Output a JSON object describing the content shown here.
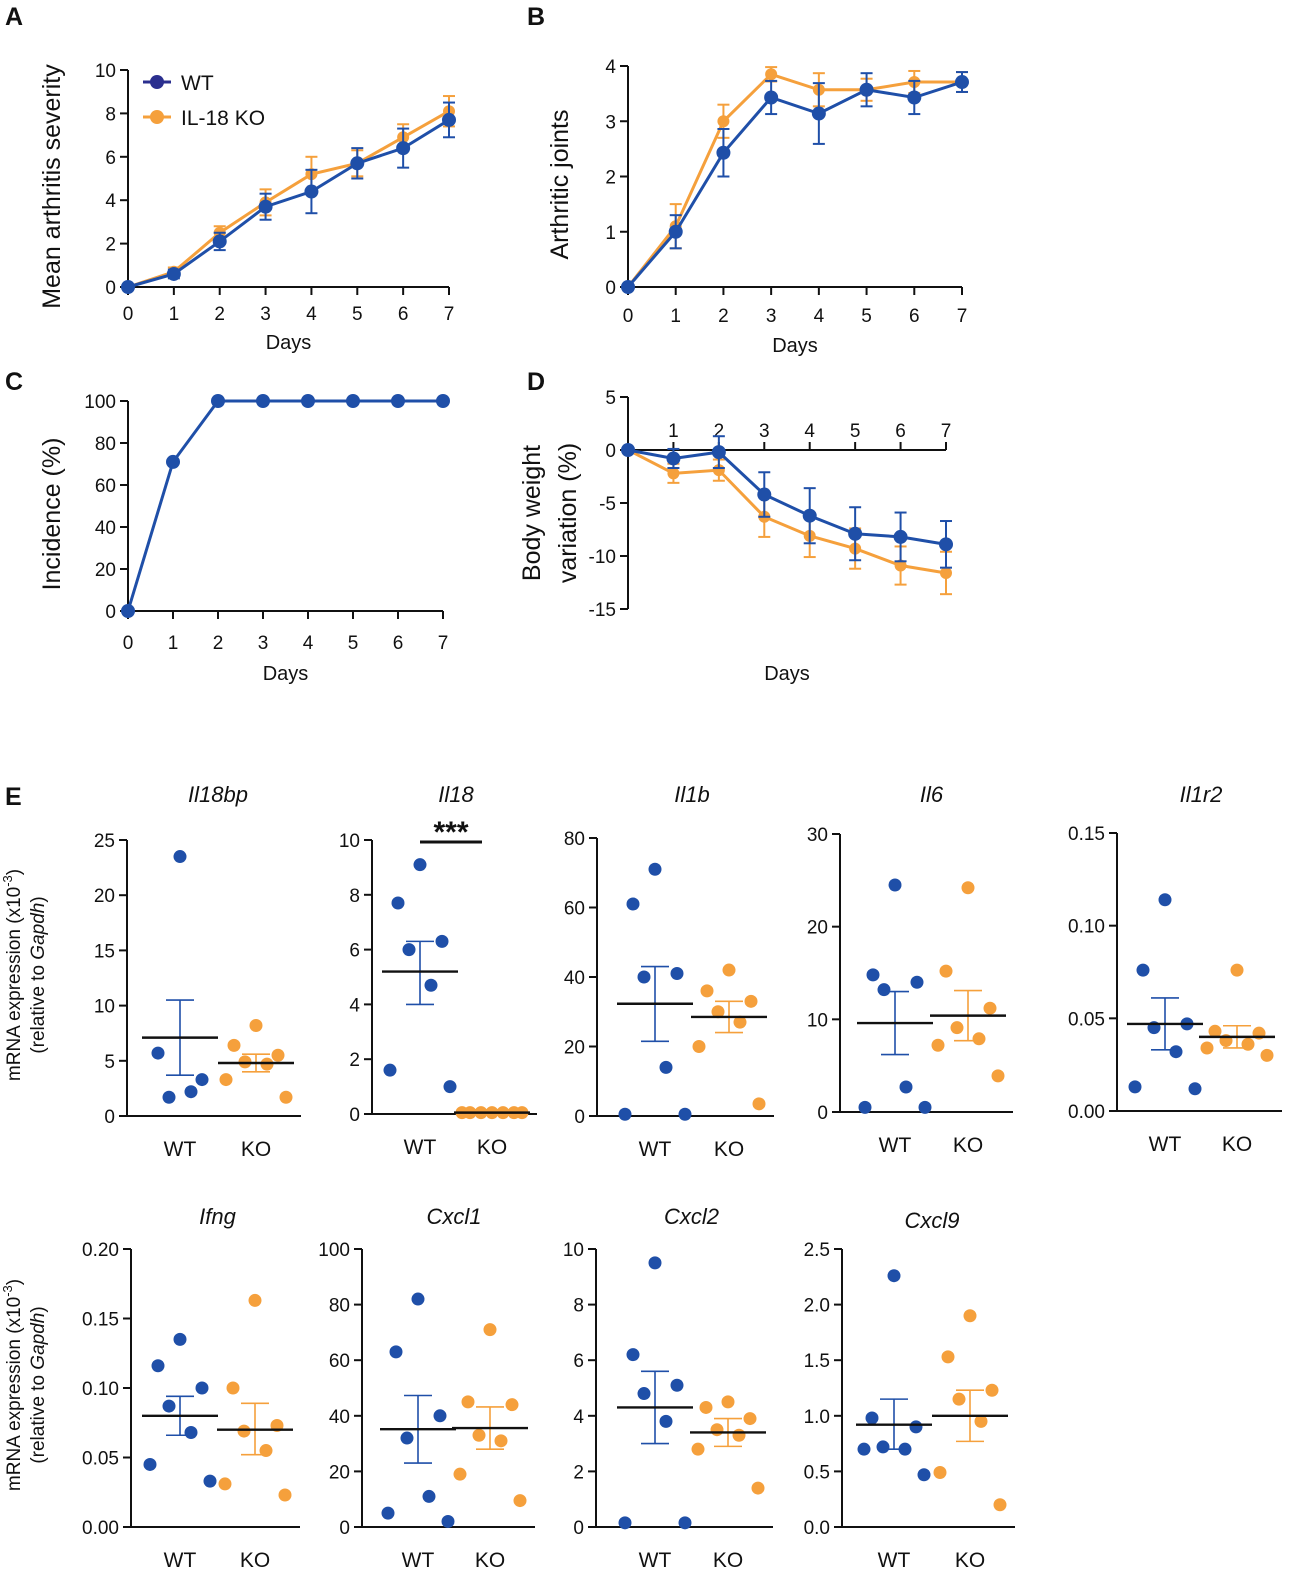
{
  "colors": {
    "wt": "#1f4fa8",
    "ko": "#f5a03c",
    "axis": "#111111",
    "legend_wt": "#2b2f8f"
  },
  "legend": {
    "wt": "WT",
    "ko": "IL-18 KO"
  },
  "panels": {
    "a": "A",
    "b": "B",
    "c": "C",
    "d": "D",
    "e": "E"
  },
  "chart_data": [
    {
      "id": "A",
      "type": "line",
      "xlabel": "Days",
      "ylabel": "Mean arthritis severity",
      "x": [
        0,
        1,
        2,
        3,
        4,
        5,
        6,
        7
      ],
      "xlim": [
        0,
        7
      ],
      "ylim": [
        0,
        10
      ],
      "xticks": [
        "0",
        "1",
        "2",
        "3",
        "4",
        "5",
        "6",
        "7"
      ],
      "yticks": [
        "0",
        "2",
        "4",
        "6",
        "8",
        "10"
      ],
      "series": [
        {
          "name": "IL-18 KO",
          "values": [
            0,
            0.7,
            2.5,
            3.9,
            5.2,
            5.7,
            6.9,
            8.1
          ],
          "errors": [
            0,
            0.2,
            0.3,
            0.6,
            0.8,
            0.6,
            0.6,
            0.7
          ]
        },
        {
          "name": "WT",
          "values": [
            0,
            0.6,
            2.1,
            3.7,
            4.4,
            5.7,
            6.4,
            7.7
          ],
          "errors": [
            0,
            0.2,
            0.4,
            0.6,
            1.0,
            0.7,
            0.9,
            0.8
          ]
        }
      ]
    },
    {
      "id": "B",
      "type": "line",
      "xlabel": "Days",
      "ylabel": "Arthritic joints",
      "x": [
        0,
        1,
        2,
        3,
        4,
        5,
        6,
        7
      ],
      "xlim": [
        0,
        7
      ],
      "ylim": [
        0,
        4
      ],
      "xticks": [
        "0",
        "1",
        "2",
        "3",
        "4",
        "5",
        "6",
        "7"
      ],
      "yticks": [
        "0",
        "1",
        "2",
        "3",
        "4"
      ],
      "series": [
        {
          "name": "IL-18 KO",
          "values": [
            0,
            1.1,
            3.0,
            3.85,
            3.57,
            3.57,
            3.71,
            3.71
          ],
          "errors": [
            0,
            0.4,
            0.3,
            0.13,
            0.3,
            0.2,
            0.2,
            0.18
          ]
        },
        {
          "name": "WT",
          "values": [
            0,
            1.0,
            2.43,
            3.43,
            3.14,
            3.57,
            3.43,
            3.71
          ],
          "errors": [
            0,
            0.3,
            0.43,
            0.3,
            0.55,
            0.3,
            0.3,
            0.18
          ]
        }
      ]
    },
    {
      "id": "C",
      "type": "line",
      "xlabel": "Days",
      "ylabel": "Incidence (%)",
      "x": [
        0,
        1,
        2,
        3,
        4,
        5,
        6,
        7
      ],
      "xlim": [
        0,
        7
      ],
      "ylim": [
        0,
        100
      ],
      "xticks": [
        "0",
        "1",
        "2",
        "3",
        "4",
        "5",
        "6",
        "7"
      ],
      "yticks": [
        "0",
        "20",
        "40",
        "60",
        "80",
        "100"
      ],
      "series": [
        {
          "name": "WT",
          "values": [
            0,
            71,
            100,
            100,
            100,
            100,
            100,
            100
          ],
          "errors": [
            0,
            0,
            0,
            0,
            0,
            0,
            0,
            0
          ]
        }
      ]
    },
    {
      "id": "D",
      "type": "line",
      "xlabel": "Days",
      "ylabel_line1": "Body weight",
      "ylabel_line2": "variation (%)",
      "x": [
        0,
        1,
        2,
        3,
        4,
        5,
        6,
        7
      ],
      "xlim": [
        0,
        7
      ],
      "ylim": [
        -15,
        5
      ],
      "xticks": [
        "1",
        "2",
        "3",
        "4",
        "5",
        "6",
        "7"
      ],
      "yticks": [
        "-15",
        "-10",
        "-5",
        "0",
        "5"
      ],
      "series": [
        {
          "name": "IL-18 KO",
          "values": [
            0,
            -2.2,
            -1.9,
            -6.3,
            -8.1,
            -9.3,
            -10.9,
            -11.6
          ],
          "errors": [
            0,
            0.9,
            1.0,
            1.9,
            2.0,
            1.9,
            1.8,
            2.0
          ]
        },
        {
          "name": "WT",
          "values": [
            0,
            -0.8,
            -0.2,
            -4.2,
            -6.2,
            -7.9,
            -8.2,
            -8.9
          ],
          "errors": [
            0,
            0.9,
            1.5,
            2.1,
            2.6,
            2.5,
            2.3,
            2.2
          ]
        }
      ]
    },
    {
      "id": "E-Il18bp",
      "type": "scatter",
      "gene": "Il18bp",
      "ylim": [
        0,
        25
      ],
      "yticks": [
        "0",
        "5",
        "10",
        "15",
        "20",
        "25"
      ],
      "categories": [
        "WT",
        "KO"
      ],
      "groups": [
        {
          "name": "WT",
          "points": [
            23.5,
            5.7,
            3.3,
            1.7,
            2.2
          ],
          "mean": 7.1,
          "sem_low": 3.7,
          "sem_high": 10.5
        },
        {
          "name": "KO",
          "points": [
            8.2,
            6.4,
            5.5,
            4.9,
            4.7,
            3.3,
            1.7
          ],
          "mean": 4.8,
          "sem_low": 4.0,
          "sem_high": 5.6
        }
      ]
    },
    {
      "id": "E-Il18",
      "type": "scatter",
      "gene": "Il18",
      "ylim": [
        0,
        10
      ],
      "yticks": [
        "0",
        "2",
        "4",
        "6",
        "8",
        "10"
      ],
      "categories": [
        "WT",
        "KO"
      ],
      "significance": "***",
      "groups": [
        {
          "name": "WT",
          "points": [
            9.1,
            7.7,
            6.3,
            6.0,
            4.7,
            1.6,
            1.0
          ],
          "mean": 5.2,
          "sem_low": 4.0,
          "sem_high": 6.3
        },
        {
          "name": "KO",
          "points": [
            0.05,
            0.05,
            0.05,
            0.05,
            0.05,
            0.05,
            0.05
          ],
          "mean": 0.05,
          "sem_low": 0.05,
          "sem_high": 0.05
        }
      ]
    },
    {
      "id": "E-Il1b",
      "type": "scatter",
      "gene": "Il1b",
      "ylim": [
        0,
        80
      ],
      "yticks": [
        "0",
        "20",
        "40",
        "60",
        "80"
      ],
      "categories": [
        "WT",
        "KO"
      ],
      "groups": [
        {
          "name": "WT",
          "points": [
            71,
            61,
            41,
            40,
            14,
            0.5,
            0.5
          ],
          "mean": 32.3,
          "sem_low": 21.5,
          "sem_high": 43
        },
        {
          "name": "KO",
          "points": [
            42,
            36,
            33,
            30,
            27,
            20,
            3.5
          ],
          "mean": 28.5,
          "sem_low": 24,
          "sem_high": 33
        }
      ]
    },
    {
      "id": "E-Il6",
      "type": "scatter",
      "gene": "Il6",
      "ylim": [
        0,
        30
      ],
      "yticks": [
        "0",
        "10",
        "20",
        "30"
      ],
      "categories": [
        "WT",
        "KO"
      ],
      "groups": [
        {
          "name": "WT",
          "points": [
            24.5,
            14.8,
            14,
            13.2,
            2.7,
            0.5,
            0.5
          ],
          "mean": 9.6,
          "sem_low": 6.2,
          "sem_high": 13
        },
        {
          "name": "KO",
          "points": [
            24.2,
            15.2,
            11.2,
            9.1,
            7.9,
            7.2,
            3.9
          ],
          "mean": 10.4,
          "sem_low": 7.7,
          "sem_high": 13.1
        }
      ]
    },
    {
      "id": "E-Il1r2",
      "type": "scatter",
      "gene": "Il1r2",
      "ylim": [
        0,
        0.15
      ],
      "yticks": [
        "0.00",
        "0.05",
        "0.10",
        "0.15"
      ],
      "categories": [
        "WT",
        "KO"
      ],
      "groups": [
        {
          "name": "WT",
          "points": [
            0.114,
            0.076,
            0.047,
            0.045,
            0.032,
            0.013,
            0.012
          ],
          "mean": 0.047,
          "sem_low": 0.033,
          "sem_high": 0.061
        },
        {
          "name": "KO",
          "points": [
            0.076,
            0.043,
            0.042,
            0.038,
            0.036,
            0.034,
            0.03
          ],
          "mean": 0.04,
          "sem_low": 0.034,
          "sem_high": 0.046
        }
      ]
    },
    {
      "id": "E-Ifng",
      "type": "scatter",
      "gene": "Ifng",
      "ylim": [
        0,
        0.2
      ],
      "yticks": [
        "0.00",
        "0.05",
        "0.10",
        "0.15",
        "0.20"
      ],
      "categories": [
        "WT",
        "KO"
      ],
      "groups": [
        {
          "name": "WT",
          "points": [
            0.135,
            0.116,
            0.1,
            0.087,
            0.068,
            0.045,
            0.033
          ],
          "mean": 0.08,
          "sem_low": 0.066,
          "sem_high": 0.094
        },
        {
          "name": "KO",
          "points": [
            0.163,
            0.1,
            0.073,
            0.069,
            0.055,
            0.031,
            0.023
          ],
          "mean": 0.07,
          "sem_low": 0.052,
          "sem_high": 0.089
        }
      ]
    },
    {
      "id": "E-Cxcl1",
      "type": "scatter",
      "gene": "Cxcl1",
      "ylim": [
        0,
        100
      ],
      "yticks": [
        "0",
        "20",
        "40",
        "60",
        "80",
        "100"
      ],
      "categories": [
        "WT",
        "KO"
      ],
      "groups": [
        {
          "name": "WT",
          "points": [
            82,
            63,
            40,
            32,
            11,
            5,
            2
          ],
          "mean": 35.2,
          "sem_low": 23,
          "sem_high": 47.3
        },
        {
          "name": "KO",
          "points": [
            71,
            45,
            44,
            33,
            31,
            19,
            9.5
          ],
          "mean": 35.6,
          "sem_low": 28,
          "sem_high": 43.2
        }
      ]
    },
    {
      "id": "E-Cxcl2",
      "type": "scatter",
      "gene": "Cxcl2",
      "ylim": [
        0,
        10
      ],
      "yticks": [
        "0",
        "2",
        "4",
        "6",
        "8",
        "10"
      ],
      "categories": [
        "WT",
        "KO"
      ],
      "groups": [
        {
          "name": "WT",
          "points": [
            9.5,
            6.2,
            5.1,
            4.8,
            3.8,
            0.15,
            0.15
          ],
          "mean": 4.3,
          "sem_low": 3.0,
          "sem_high": 5.6
        },
        {
          "name": "KO",
          "points": [
            4.5,
            4.3,
            3.9,
            3.5,
            3.3,
            2.8,
            1.4
          ],
          "mean": 3.4,
          "sem_low": 2.9,
          "sem_high": 3.9
        }
      ]
    },
    {
      "id": "E-Cxcl9",
      "type": "scatter",
      "gene": "Cxcl9",
      "ylim": [
        0,
        2.5
      ],
      "yticks": [
        "0.0",
        "0.5",
        "1.0",
        "1.5",
        "2.0",
        "2.5"
      ],
      "categories": [
        "WT",
        "KO"
      ],
      "groups": [
        {
          "name": "WT",
          "points": [
            2.26,
            0.98,
            0.9,
            0.72,
            0.7,
            0.7,
            0.47
          ],
          "mean": 0.92,
          "sem_low": 0.7,
          "sem_high": 1.15
        },
        {
          "name": "KO",
          "points": [
            1.9,
            1.53,
            1.23,
            1.15,
            0.95,
            0.49,
            0.2
          ],
          "mean": 1.0,
          "sem_low": 0.77,
          "sem_high": 1.23
        }
      ]
    }
  ],
  "e_ylabel": {
    "line1_prefix": "mRNA expression (x10",
    "line1_exp": "-3",
    "line1_suffix": ")",
    "line2_prefix": "(relative to ",
    "line2_italic": "Gapdh",
    "line2_suffix": ")"
  }
}
